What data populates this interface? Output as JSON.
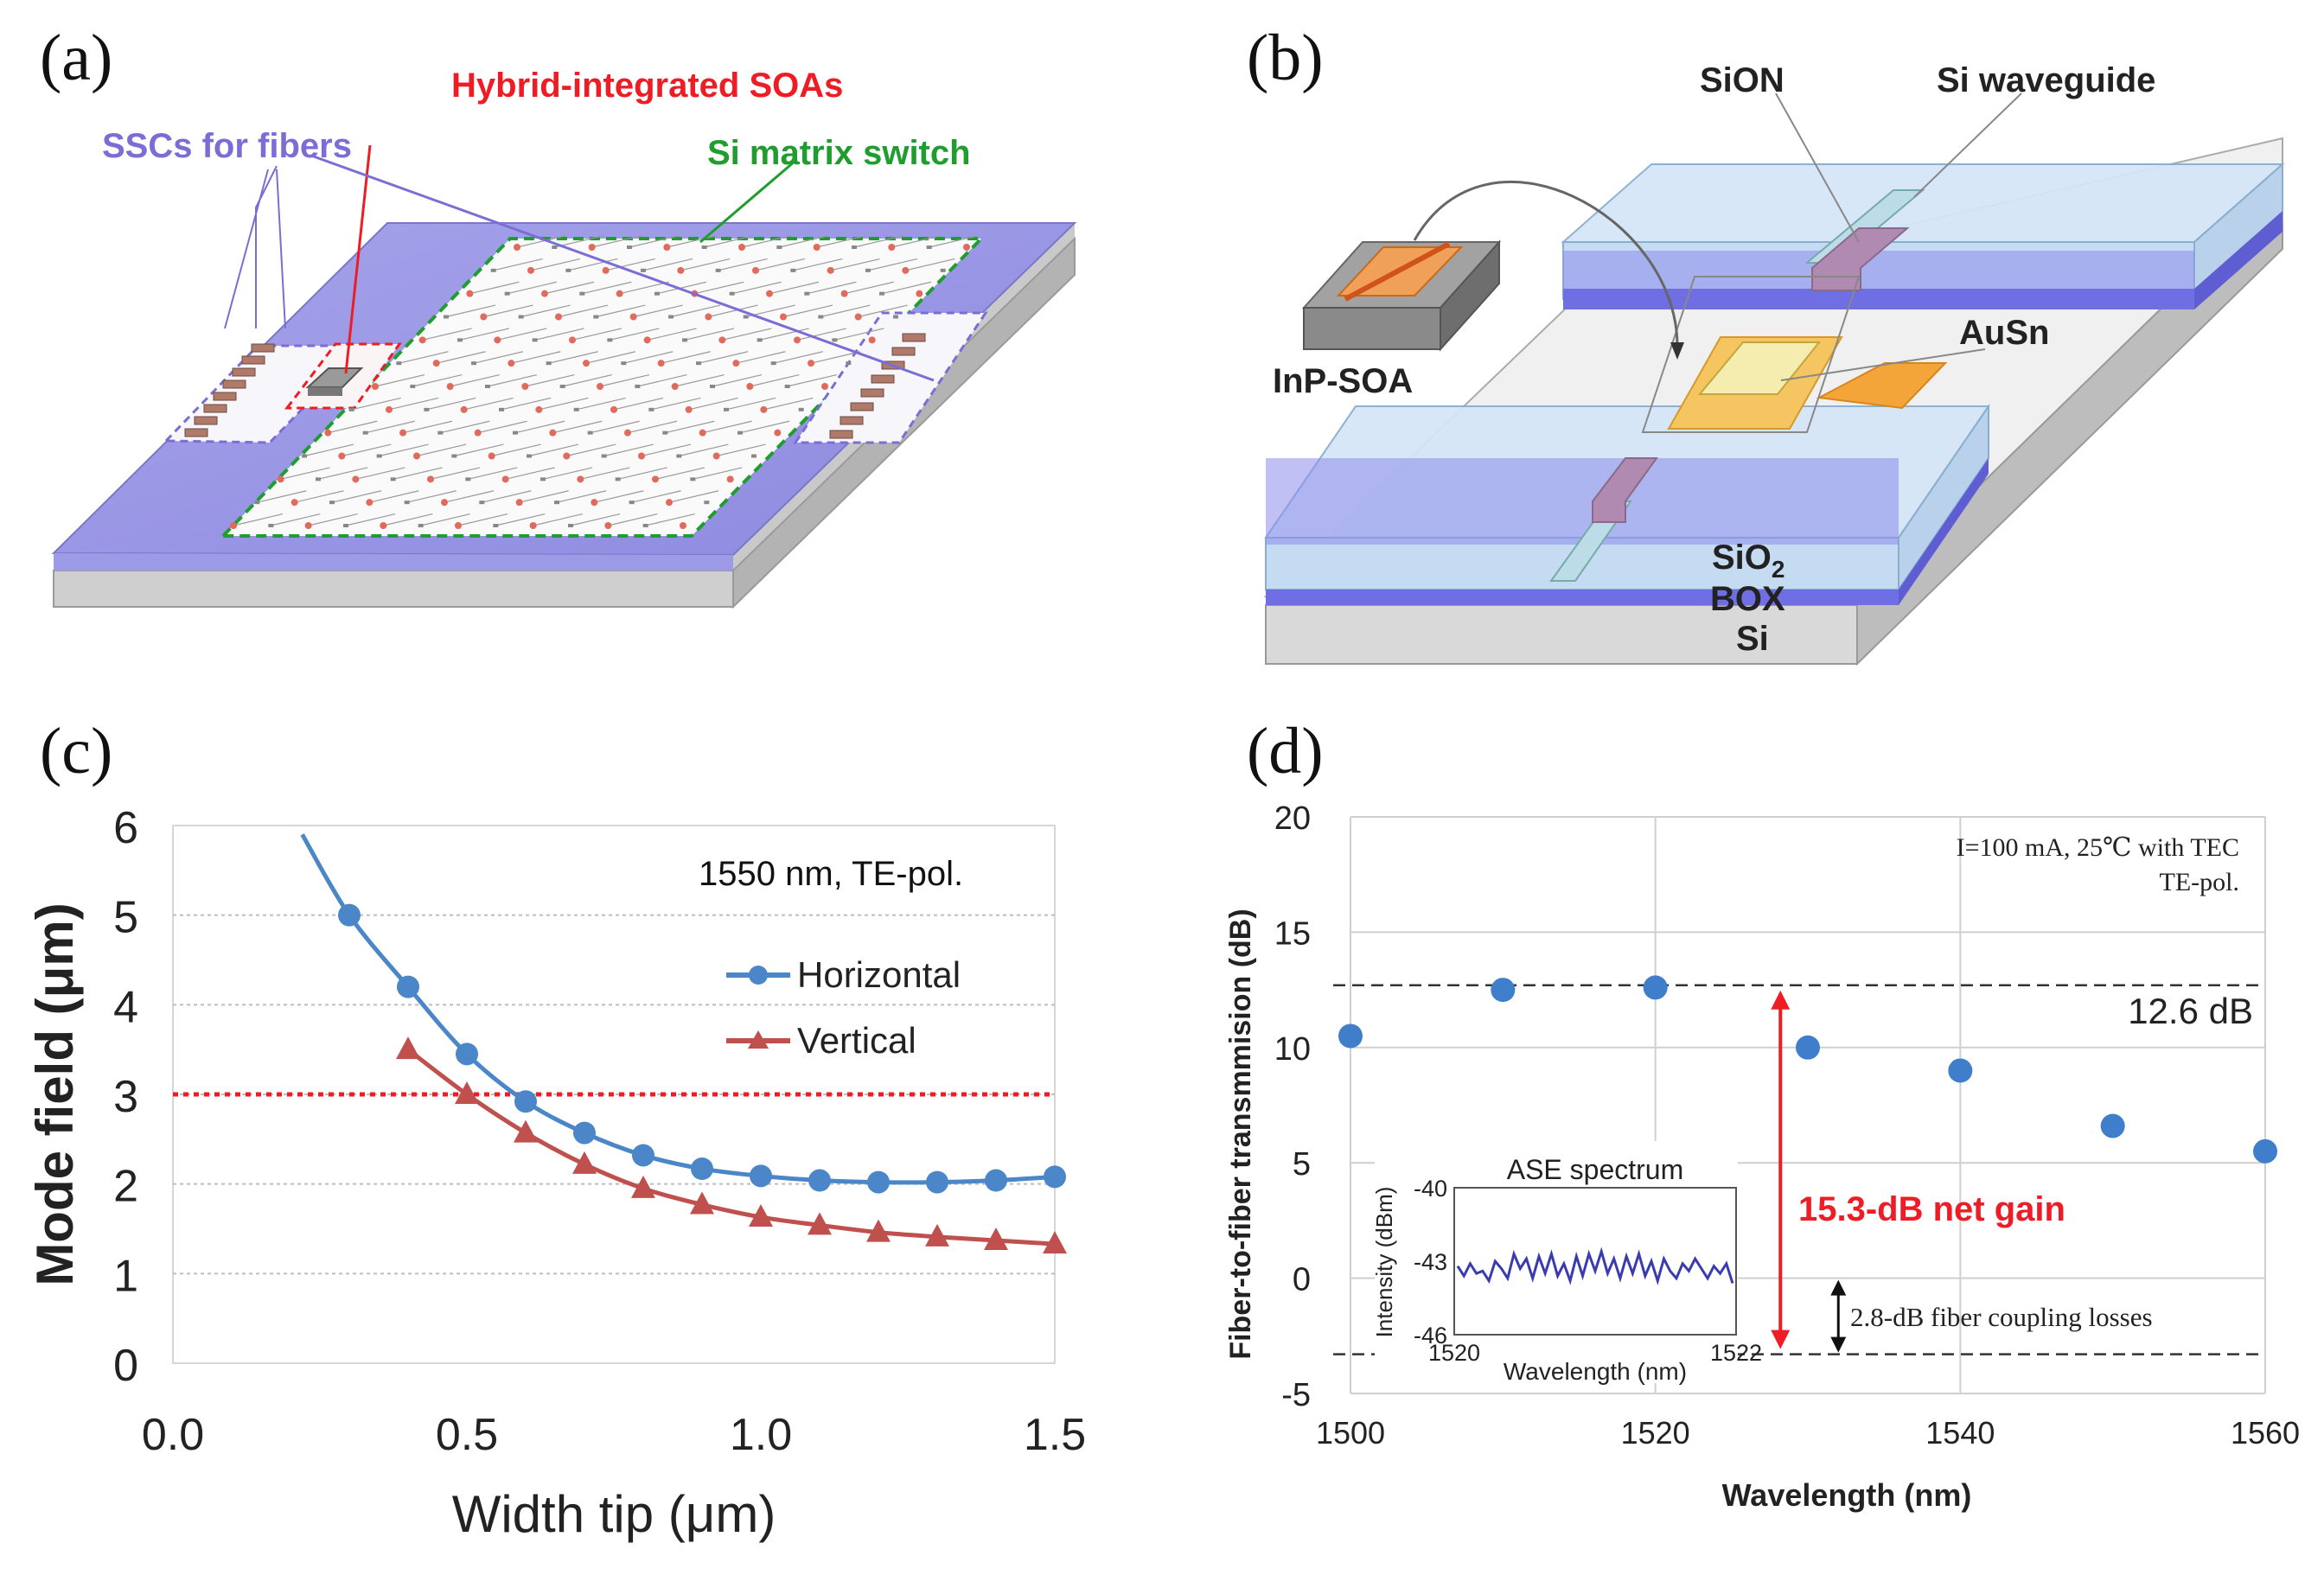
{
  "panels": {
    "a": {
      "label": "(a)",
      "callouts": {
        "soa": "Hybrid-integrated SOAs",
        "ssc": "SSCs for fibers",
        "switch": "Si matrix switch"
      },
      "colors": {
        "soa": "#ee1c25",
        "ssc": "#7a6ed6",
        "switch": "#1f9e2f"
      }
    },
    "b": {
      "label": "(b)",
      "labels": {
        "sion": "SiON",
        "si_waveguide": "Si waveguide",
        "ausn": "AuSn",
        "inp_soa": "InP-SOA",
        "sio2": "SiO",
        "sio2_sub": "2",
        "box": "BOX",
        "si": "Si"
      }
    },
    "c": {
      "label": "(c)"
    },
    "d": {
      "label": "(d)"
    }
  },
  "chart_data": [
    {
      "id": "c",
      "type": "line",
      "title": "",
      "annotation": "1550 nm, TE-pol.",
      "xlabel": "Width tip (μm)",
      "ylabel": "Mode field (μm)",
      "xlim": [
        0.0,
        1.5
      ],
      "ylim": [
        0,
        6
      ],
      "xticks": [
        "0.0",
        "0.5",
        "1.0",
        "1.5"
      ],
      "yticks": [
        "0",
        "1",
        "2",
        "3",
        "4",
        "5",
        "6"
      ],
      "reference_line": 3,
      "legend_position": "right",
      "series": [
        {
          "name": "Horizontal",
          "color": "#4a86c8",
          "marker": "circle",
          "x": [
            0.3,
            0.4,
            0.5,
            0.6,
            0.7,
            0.8,
            0.9,
            1.0,
            1.1,
            1.2,
            1.3,
            1.4,
            1.5
          ],
          "values": [
            5.0,
            4.2,
            3.45,
            2.92,
            2.57,
            2.32,
            2.17,
            2.09,
            2.04,
            2.02,
            2.02,
            2.04,
            2.08
          ],
          "curve_start": [
            0.22,
            5.9
          ]
        },
        {
          "name": "Vertical",
          "color": "#c0504d",
          "marker": "triangle",
          "x": [
            0.4,
            0.5,
            0.6,
            0.7,
            0.8,
            0.9,
            1.0,
            1.1,
            1.2,
            1.3,
            1.4,
            1.5
          ],
          "values": [
            3.5,
            3.0,
            2.57,
            2.22,
            1.95,
            1.77,
            1.63,
            1.54,
            1.46,
            1.41,
            1.37,
            1.33
          ]
        }
      ]
    },
    {
      "id": "d",
      "type": "scatter",
      "title": "",
      "annotation_lines": [
        "I=100 mA, 25℃ with TEC",
        "TE-pol."
      ],
      "xlabel": "Wavelength (nm)",
      "ylabel": "Fiber-to-fiber transmmision (dB)",
      "xlim": [
        1500,
        1560
      ],
      "ylim": [
        -5,
        20
      ],
      "xticks": [
        "1500",
        "1520",
        "1540",
        "1560"
      ],
      "yticks": [
        "-5",
        "0",
        "5",
        "10",
        "15",
        "20"
      ],
      "color": "#3f7ecb",
      "x": [
        1500,
        1510,
        1520,
        1530,
        1540,
        1550,
        1560
      ],
      "values": [
        10.5,
        12.5,
        12.6,
        10.0,
        9.0,
        6.6,
        5.5
      ],
      "hline_top": 12.7,
      "hline_top_label": "12.6 dB",
      "hline_bottom": -3.3,
      "gain_label": "15.3-dB net gain",
      "gain_color": "#ee1c25",
      "loss_label": "2.8-dB fiber coupling losses",
      "inset": {
        "title": "ASE spectrum",
        "xlabel": "Wavelength (nm)",
        "ylabel": "Intensity (dBm)",
        "xticks": [
          "1520",
          "1522"
        ],
        "yticks": [
          "-40",
          "-43",
          "-46"
        ],
        "xlim": [
          1520,
          1522
        ],
        "ylim": [
          -46,
          -40
        ],
        "color": "#3b3bb0",
        "values": [
          -43.2,
          -43.6,
          -43.1,
          -43.5,
          -43.4,
          -43.8,
          -43.0,
          -43.3,
          -43.7,
          -42.7,
          -43.3,
          -42.9,
          -43.7,
          -42.8,
          -43.5,
          -42.7,
          -43.6,
          -43.1,
          -43.8,
          -42.8,
          -43.6,
          -42.7,
          -43.4,
          -42.6,
          -43.5,
          -42.9,
          -43.7,
          -42.8,
          -43.5,
          -42.7,
          -43.6,
          -43.0,
          -43.8,
          -42.9,
          -43.4,
          -43.7,
          -43.1,
          -43.4,
          -42.9,
          -43.3,
          -43.7,
          -43.2,
          -43.5,
          -43.1,
          -43.9
        ]
      }
    }
  ]
}
